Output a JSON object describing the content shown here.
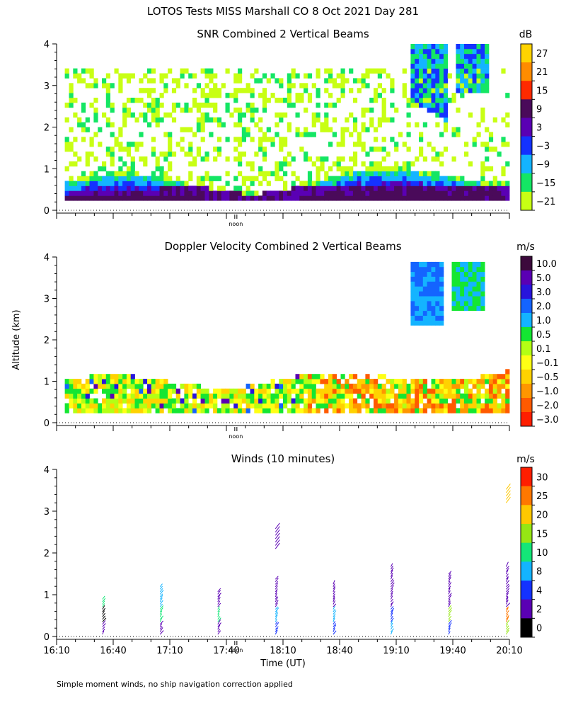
{
  "header": {
    "title": "LOTOS Tests MISS Marshall CO   8 Oct 2021 Day 281"
  },
  "footer": {
    "note": "Simple moment winds, no ship navigation correction applied"
  },
  "chart_data": [
    {
      "id": "snr",
      "type": "heatmap",
      "title": "SNR Combined 2 Vertical Beams",
      "units_label": "dB",
      "ylim": [
        0,
        4
      ],
      "yticks": [
        "0",
        "1",
        "2",
        "3",
        "4"
      ],
      "time_range": [
        "16:10",
        "20:10"
      ],
      "noon_marker": "noon",
      "colorbar": {
        "labels": [
          "27",
          "21",
          "15",
          "9",
          "3",
          "−3",
          "−9",
          "−15",
          "−21"
        ],
        "colors": [
          "#ffd400",
          "#ff8c00",
          "#ff2a00",
          "#4a0a5a",
          "#5a00b4",
          "#1432ff",
          "#14b4ff",
          "#14e664",
          "#c8ff14"
        ]
      }
    },
    {
      "id": "doppler",
      "type": "heatmap",
      "title": "Doppler Velocity Combined 2 Vertical Beams",
      "units_label": "m/s",
      "ylabel": "Altitude (km)",
      "ylim": [
        0,
        4
      ],
      "yticks": [
        "0",
        "1",
        "2",
        "3",
        "4"
      ],
      "time_range": [
        "16:10",
        "20:10"
      ],
      "noon_marker": "noon",
      "colorbar": {
        "labels": [
          "10.0",
          "5.0",
          "3.0",
          "2.0",
          "1.0",
          "0.5",
          "0.1",
          "−0.1",
          "−0.5",
          "−1.0",
          "−2.0",
          "−3.0"
        ],
        "colors": [
          "#3c0a3c",
          "#5a00b4",
          "#2814dc",
          "#1464ff",
          "#14b4ff",
          "#14e632",
          "#b4ff14",
          "#ffff14",
          "#ffd200",
          "#ff9600",
          "#ff5a00",
          "#ff1e00"
        ]
      }
    },
    {
      "id": "winds",
      "type": "wind-barbs",
      "title": "Winds (10 minutes)",
      "units_label": "m/s",
      "xlabel": "Time (UT)",
      "ylim": [
        0,
        4
      ],
      "yticks": [
        "0",
        "1",
        "2",
        "3",
        "4"
      ],
      "xlim": [
        "16:10",
        "20:10"
      ],
      "xticks": [
        "16:10",
        "16:40",
        "17:10",
        "17:40",
        "18:10",
        "18:40",
        "19:10",
        "19:40",
        "20:10"
      ],
      "noon_marker": "noon",
      "colorbar": {
        "labels": [
          "30",
          "25",
          "20",
          "15",
          "10",
          "8",
          "4",
          "2",
          "0"
        ],
        "colors": [
          "#ff1e00",
          "#ff7800",
          "#ffc800",
          "#96e614",
          "#14e678",
          "#14b4ff",
          "#1432ff",
          "#5a00b4",
          "#000000"
        ]
      }
    }
  ]
}
